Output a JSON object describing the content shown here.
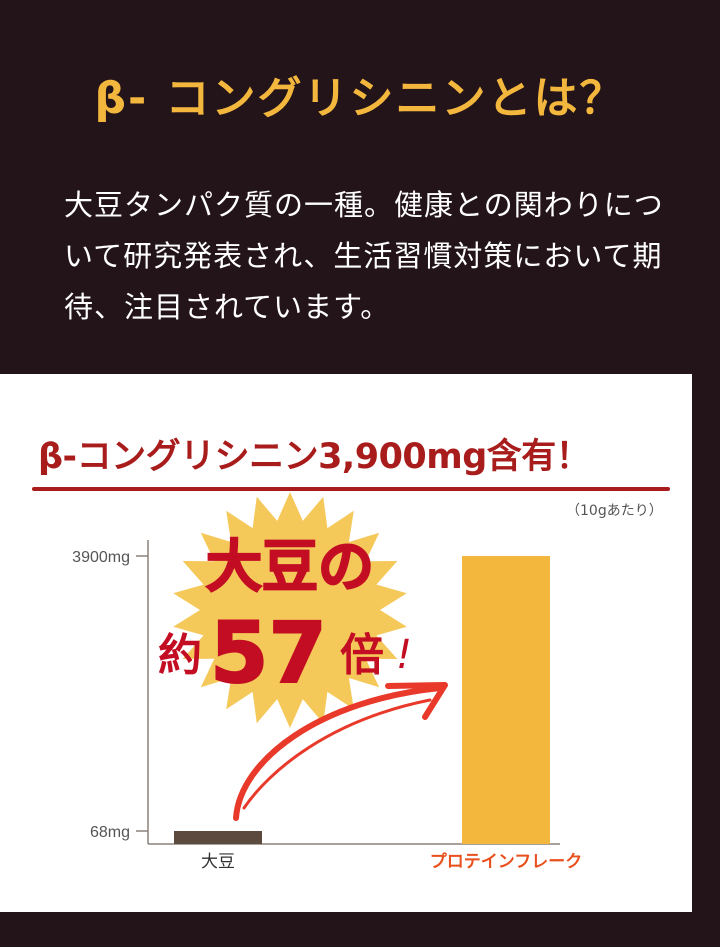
{
  "header": {
    "title": "β- コングリシニンとは？",
    "description": "大豆タンパク質の一種。健康との関わりについて研究発表され、生活習慣対策において期待、注目されています。"
  },
  "chart_data": {
    "type": "bar",
    "title": "β-コングリシニン3,900mg含有！",
    "unit_note": "（10gあたり）",
    "categories": [
      "大豆",
      "プロテインフレーク"
    ],
    "values": [
      68,
      3900
    ],
    "ytick_labels": [
      "3900mg",
      "68mg"
    ],
    "ytick_values": [
      3900,
      68
    ],
    "bar_colors": [
      "#5c4a3e",
      "#f4b73e"
    ],
    "category_colors": [
      "#333333",
      "#e8501e"
    ],
    "grid": false,
    "callout": {
      "line1": "大豆の",
      "line2_prefix": "約",
      "line2_number": "57",
      "line2_suffix": "倍",
      "exclaim": "!"
    }
  },
  "colors": {
    "background": "#231419",
    "accent": "#f4b73e",
    "title_red": "#a81c1c",
    "callout_red": "#c30d23",
    "arrow": "#e8392a"
  }
}
